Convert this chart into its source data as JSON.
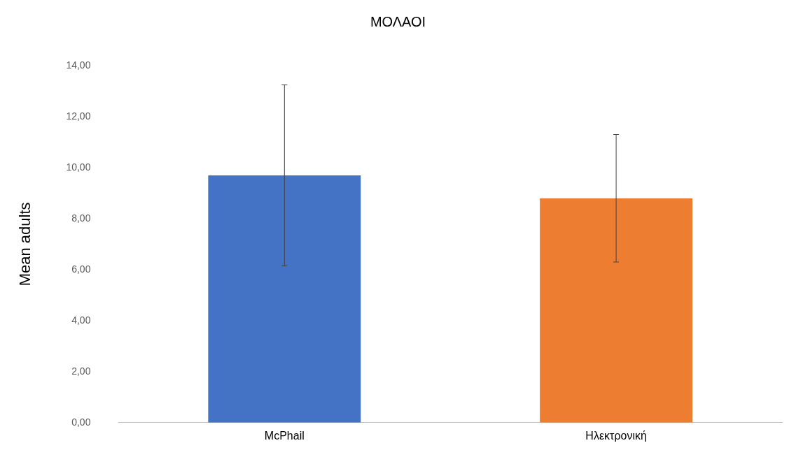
{
  "chart_data": {
    "type": "bar",
    "title": "ΜΟΛΑΟΙ",
    "ylabel": "Mean adults",
    "categories": [
      "McPhail",
      "Ηλεκτρονική"
    ],
    "values": [
      9.7,
      8.8
    ],
    "colors": [
      "#4472c4",
      "#ed7d31"
    ],
    "errors": [
      3.55,
      2.5
    ],
    "ylim": [
      0,
      14
    ],
    "yticks": [
      {
        "value": 0,
        "label": "0,00"
      },
      {
        "value": 2,
        "label": "2,00"
      },
      {
        "value": 4,
        "label": "4,00"
      },
      {
        "value": 6,
        "label": "6,00"
      },
      {
        "value": 8,
        "label": "8,00"
      },
      {
        "value": 10,
        "label": "10,00"
      },
      {
        "value": 12,
        "label": "12,00"
      },
      {
        "value": 14,
        "label": "14,00"
      }
    ],
    "grid": false,
    "legend": false
  }
}
